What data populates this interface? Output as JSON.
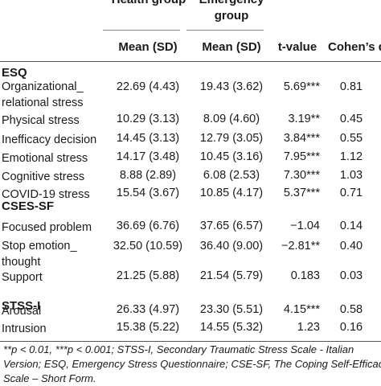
{
  "headers": {
    "group1": "Health group",
    "group2": "Emergency group",
    "mean1": "Mean (SD)",
    "mean2": "Mean (SD)",
    "tvalue": "t-value",
    "cohen": "Cohen’s d"
  },
  "sections": [
    {
      "title": "ESQ",
      "rows": [
        {
          "label": "Organizational_ relational stress",
          "m1": "22.69 (4.43)",
          "m2": "19.43 (3.62)",
          "t": "5.69***",
          "d": "0.81"
        },
        {
          "label": "Physical stress",
          "m1": "10.29 (3.13)",
          "m2": "8.09 (4.60)",
          "t": "3.19**",
          "d": "0.45"
        },
        {
          "label": "Inefficacy decision",
          "m1": "14.45 (3.13)",
          "m2": "12.79 (3.05)",
          "t": "3.84***",
          "d": "0.55"
        },
        {
          "label": "Emotional stress",
          "m1": "14.17 (3.48)",
          "m2": "10.45 (3.16)",
          "t": "7.95***",
          "d": "1.12"
        },
        {
          "label": "Cognitive stress",
          "m1": "8.88 (2.89)",
          "m2": "6.08 (2.53)",
          "t": "7.30***",
          "d": "1.03"
        },
        {
          "label": "COVID-19 stress",
          "m1": "15.54 (3.67)",
          "m2": "10.85 (4.17)",
          "t": "5.37***",
          "d": "0.71"
        }
      ]
    },
    {
      "title": "CSES-SF",
      "rows": [
        {
          "label": "Focused problem",
          "m1": "36.69 (6.76)",
          "m2": "37.65 (6.57)",
          "t": "−1.04",
          "d": "0.14"
        },
        {
          "label": "Stop emotion_ thought",
          "m1": "32.50 (10.59)",
          "m2": "36.40 (9.00)",
          "t": "−2.81**",
          "d": "0.40"
        },
        {
          "label": "Support",
          "m1": "21.25 (5.88)",
          "m2": "21.54 (5.79)",
          "t": "0.183",
          "d": "0.03"
        }
      ]
    },
    {
      "title": "STSS-I",
      "rows": [
        {
          "label": "Arousal",
          "m1": "26.33 (4.97)",
          "m2": "23.30 (5.51)",
          "t": "4.15***",
          "d": "0.58"
        },
        {
          "label": "Intrusion",
          "m1": "15.38 (5.22)",
          "m2": "14.55 (5.32)",
          "t": "1.23",
          "d": "0.16"
        }
      ]
    }
  ],
  "footnote": {
    "line1": "**p < 0.01, ***p < 0.001; STSS-I, Secondary Traumatic Stress Scale - Italian",
    "line2": "Version; ESQ, Emergency Stress Questionnaire; CSE-SF, The Coping Self-Efficacy",
    "line3": "Scale – Short Form."
  }
}
